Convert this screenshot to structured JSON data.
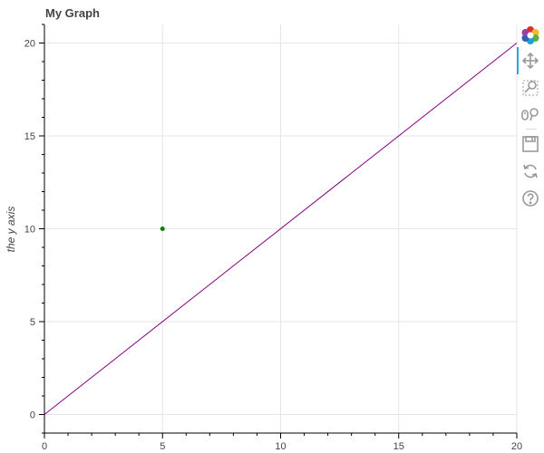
{
  "title": "My Graph",
  "chart_data": {
    "type": "line",
    "title": "My Graph",
    "xlabel": "",
    "ylabel": "the y axis",
    "xlim": [
      0,
      20
    ],
    "ylim": [
      -1,
      21
    ],
    "x_ticks": [
      0,
      5,
      10,
      15,
      20
    ],
    "y_ticks": [
      0,
      5,
      10,
      15,
      20
    ],
    "grid": true,
    "series": [
      {
        "type": "line",
        "x": [
          0,
          20
        ],
        "y": [
          0,
          20
        ],
        "color": "#800080"
      },
      {
        "type": "scatter",
        "x": [
          5
        ],
        "y": [
          10
        ],
        "color": "#008000"
      }
    ]
  },
  "toolbar": {
    "tools": [
      {
        "name": "bokeh-logo-icon",
        "interactable": true
      },
      {
        "name": "pan-tool-icon",
        "interactable": true,
        "active": true
      },
      {
        "name": "box-zoom-tool-icon",
        "interactable": true
      },
      {
        "name": "wheel-zoom-tool-icon",
        "interactable": true
      },
      {
        "name": "save-tool-icon",
        "interactable": true
      },
      {
        "name": "reset-tool-icon",
        "interactable": true
      },
      {
        "name": "help-tool-icon",
        "interactable": true
      }
    ]
  }
}
